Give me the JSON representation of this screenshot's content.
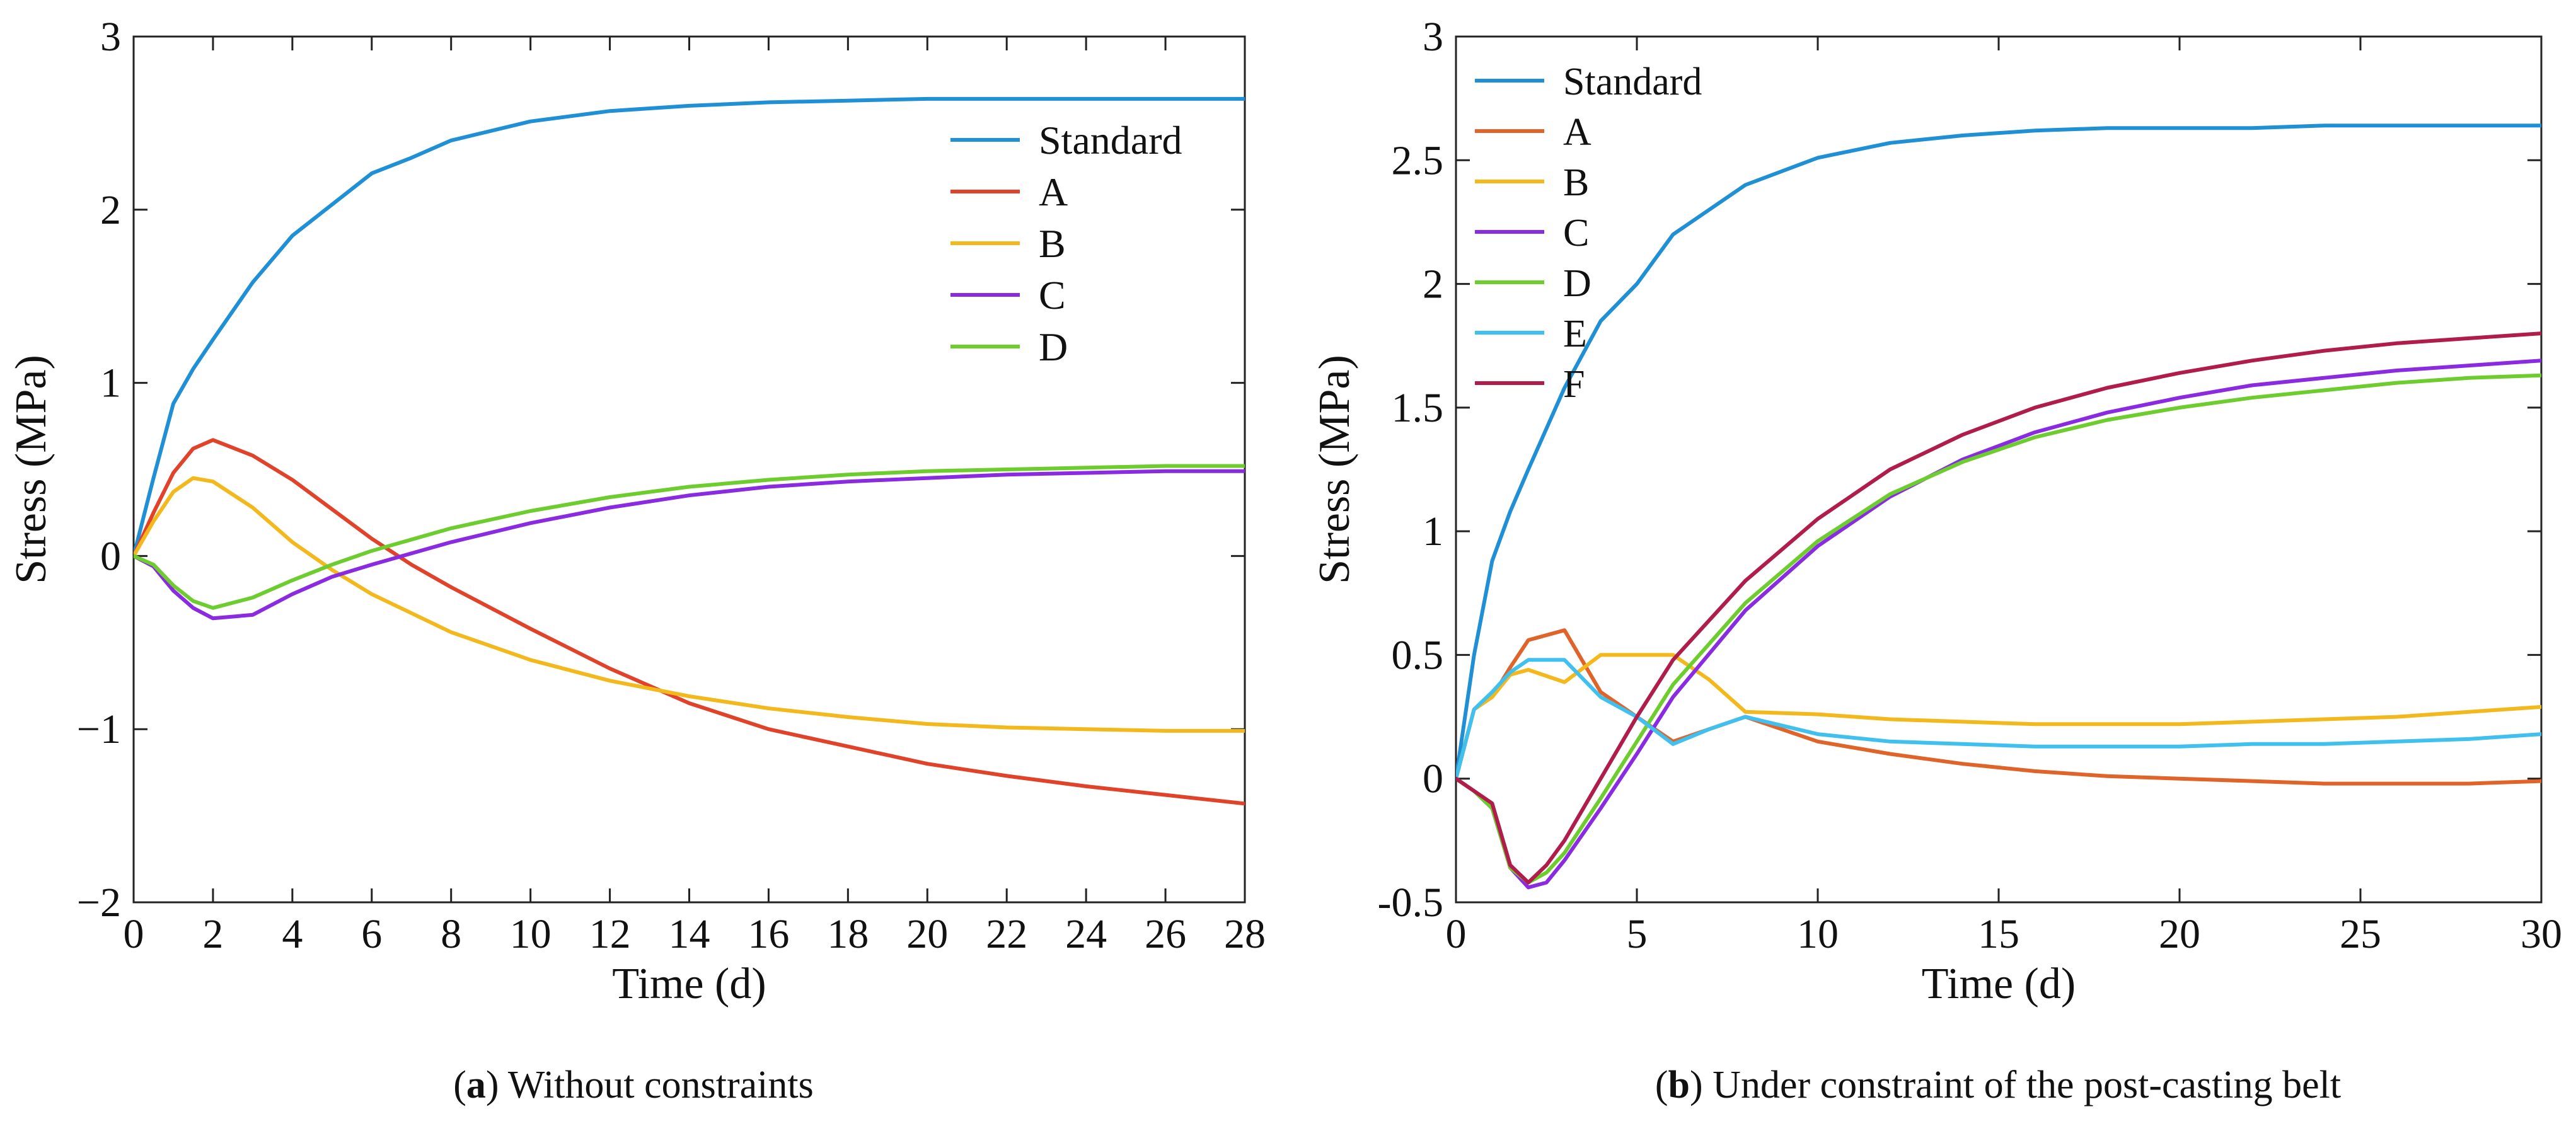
{
  "chart_data": [
    {
      "type": "line",
      "caption": {
        "letter": "a",
        "text": ") Without constraints"
      },
      "xlabel": "Time (d)",
      "ylabel": "Stress (MPa)",
      "xlim": [
        0,
        28
      ],
      "ylim": [
        -2,
        3
      ],
      "xticks": [
        0,
        2,
        4,
        6,
        8,
        10,
        12,
        14,
        16,
        18,
        20,
        22,
        24,
        26,
        28
      ],
      "yticks": [
        -2,
        -1,
        0,
        1,
        2,
        3
      ],
      "ytick_labels": [
        "−2",
        "−1",
        "0",
        "1",
        "2",
        "3"
      ],
      "grid": false,
      "legend_position": "top-right",
      "series": [
        {
          "name": "Standard",
          "color": "#1f8fd6",
          "x": [
            0,
            0.5,
            1,
            1.5,
            2,
            3,
            4,
            5,
            6,
            7,
            8,
            10,
            12,
            14,
            16,
            18,
            20,
            22,
            24,
            26,
            28
          ],
          "y": [
            0,
            0.45,
            0.88,
            1.08,
            1.25,
            1.58,
            1.85,
            2.03,
            2.21,
            2.3,
            2.4,
            2.51,
            2.57,
            2.6,
            2.62,
            2.63,
            2.64,
            2.64,
            2.64,
            2.64,
            2.64
          ]
        },
        {
          "name": "A",
          "color": "#e0432a",
          "x": [
            0,
            0.5,
            1,
            1.5,
            2,
            3,
            4,
            5,
            6,
            7,
            8,
            10,
            12,
            14,
            16,
            18,
            20,
            22,
            24,
            26,
            28
          ],
          "y": [
            0,
            0.25,
            0.48,
            0.62,
            0.67,
            0.58,
            0.44,
            0.27,
            0.1,
            -0.05,
            -0.18,
            -0.42,
            -0.65,
            -0.85,
            -1.0,
            -1.1,
            -1.2,
            -1.27,
            -1.33,
            -1.38,
            -1.43
          ]
        },
        {
          "name": "B",
          "color": "#f2b81c",
          "x": [
            0,
            0.5,
            1,
            1.5,
            2,
            3,
            4,
            5,
            6,
            8,
            10,
            12,
            14,
            16,
            18,
            20,
            22,
            24,
            26,
            28
          ],
          "y": [
            0,
            0.2,
            0.37,
            0.45,
            0.43,
            0.28,
            0.08,
            -0.08,
            -0.22,
            -0.44,
            -0.6,
            -0.72,
            -0.81,
            -0.88,
            -0.93,
            -0.97,
            -0.99,
            -1.0,
            -1.01,
            -1.01
          ]
        },
        {
          "name": "C",
          "color": "#8a2be2",
          "x": [
            0,
            0.5,
            1,
            1.5,
            2,
            3,
            4,
            5,
            6,
            8,
            10,
            12,
            14,
            16,
            18,
            20,
            22,
            24,
            26,
            28
          ],
          "y": [
            0,
            -0.06,
            -0.2,
            -0.3,
            -0.36,
            -0.34,
            -0.22,
            -0.12,
            -0.05,
            0.08,
            0.19,
            0.28,
            0.35,
            0.4,
            0.43,
            0.45,
            0.47,
            0.48,
            0.49,
            0.49
          ]
        },
        {
          "name": "D",
          "color": "#6dcc2e",
          "x": [
            0,
            0.5,
            1,
            1.5,
            2,
            3,
            4,
            5,
            6,
            8,
            10,
            12,
            14,
            16,
            18,
            20,
            22,
            24,
            26,
            28
          ],
          "y": [
            0,
            -0.05,
            -0.17,
            -0.26,
            -0.3,
            -0.24,
            -0.14,
            -0.05,
            0.03,
            0.16,
            0.26,
            0.34,
            0.4,
            0.44,
            0.47,
            0.49,
            0.5,
            0.51,
            0.52,
            0.52
          ]
        }
      ]
    },
    {
      "type": "line",
      "caption": {
        "letter": "b",
        "text": ") Under constraint of the post-casting belt"
      },
      "xlabel": "Time (d)",
      "ylabel": "Stress (MPa)",
      "xlim": [
        0,
        30
      ],
      "ylim": [
        -0.5,
        3
      ],
      "xticks": [
        0,
        5,
        10,
        15,
        20,
        25,
        30
      ],
      "yticks": [
        -0.5,
        0,
        0.5,
        1,
        1.5,
        2,
        2.5,
        3
      ],
      "ytick_labels": [
        "-0.5",
        "0",
        "0.5",
        "1",
        "1.5",
        "2",
        "2.5",
        "3"
      ],
      "grid": false,
      "legend_position": "top-left",
      "series": [
        {
          "name": "Standard",
          "color": "#1f8fd6",
          "x": [
            0,
            0.5,
            1,
            1.5,
            2,
            3,
            4,
            5,
            6,
            7,
            8,
            10,
            12,
            14,
            16,
            18,
            20,
            22,
            24,
            26,
            28,
            30
          ],
          "y": [
            0,
            0.5,
            0.88,
            1.08,
            1.25,
            1.58,
            1.85,
            2.0,
            2.2,
            2.3,
            2.4,
            2.51,
            2.57,
            2.6,
            2.62,
            2.63,
            2.63,
            2.63,
            2.64,
            2.64,
            2.64,
            2.64
          ]
        },
        {
          "name": "A",
          "color": "#e0632a",
          "x": [
            0,
            0.5,
            1,
            1.5,
            2,
            3,
            4,
            5,
            6,
            7,
            8,
            10,
            12,
            14,
            16,
            18,
            20,
            22,
            24,
            26,
            28,
            30
          ],
          "y": [
            0,
            0.28,
            0.33,
            0.45,
            0.56,
            0.6,
            0.35,
            0.25,
            0.15,
            0.2,
            0.25,
            0.15,
            0.1,
            0.06,
            0.03,
            0.01,
            0.0,
            -0.01,
            -0.02,
            -0.02,
            -0.02,
            -0.01
          ]
        },
        {
          "name": "B",
          "color": "#f2b81c",
          "x": [
            0,
            0.5,
            1,
            1.5,
            2,
            3,
            4,
            5,
            6,
            7,
            8,
            10,
            12,
            14,
            16,
            18,
            20,
            22,
            24,
            26,
            28,
            30
          ],
          "y": [
            0,
            0.28,
            0.33,
            0.42,
            0.44,
            0.39,
            0.5,
            0.5,
            0.5,
            0.4,
            0.27,
            0.26,
            0.24,
            0.23,
            0.22,
            0.22,
            0.22,
            0.23,
            0.24,
            0.25,
            0.27,
            0.29
          ]
        },
        {
          "name": "C",
          "color": "#8a2be2",
          "x": [
            0,
            0.5,
            1,
            1.5,
            2,
            2.5,
            3,
            4,
            5,
            6,
            8,
            10,
            12,
            14,
            16,
            18,
            20,
            22,
            24,
            26,
            28,
            30
          ],
          "y": [
            0,
            -0.05,
            -0.12,
            -0.36,
            -0.44,
            -0.42,
            -0.33,
            -0.12,
            0.1,
            0.33,
            0.68,
            0.94,
            1.14,
            1.29,
            1.4,
            1.48,
            1.54,
            1.59,
            1.62,
            1.65,
            1.67,
            1.69
          ]
        },
        {
          "name": "D",
          "color": "#6dcc2e",
          "x": [
            0,
            0.5,
            1,
            1.5,
            2,
            2.5,
            3,
            4,
            5,
            6,
            8,
            10,
            12,
            14,
            16,
            18,
            20,
            22,
            24,
            26,
            28,
            30
          ],
          "y": [
            0,
            -0.05,
            -0.12,
            -0.36,
            -0.42,
            -0.38,
            -0.3,
            -0.08,
            0.15,
            0.38,
            0.71,
            0.96,
            1.15,
            1.28,
            1.38,
            1.45,
            1.5,
            1.54,
            1.57,
            1.6,
            1.62,
            1.63
          ]
        },
        {
          "name": "E",
          "color": "#3fc0ee",
          "x": [
            0,
            0.5,
            1,
            1.5,
            2,
            3,
            4,
            5,
            6,
            7,
            8,
            10,
            12,
            14,
            16,
            18,
            20,
            22,
            24,
            26,
            28,
            30
          ],
          "y": [
            0,
            0.28,
            0.35,
            0.43,
            0.48,
            0.48,
            0.33,
            0.25,
            0.14,
            0.2,
            0.25,
            0.18,
            0.15,
            0.14,
            0.13,
            0.13,
            0.13,
            0.14,
            0.14,
            0.15,
            0.16,
            0.18
          ]
        },
        {
          "name": "F",
          "color": "#b01d4a",
          "x": [
            0,
            0.5,
            1,
            1.5,
            2,
            2.5,
            3,
            4,
            5,
            6,
            8,
            10,
            12,
            14,
            16,
            18,
            20,
            22,
            24,
            26,
            28,
            30
          ],
          "y": [
            0,
            -0.05,
            -0.1,
            -0.35,
            -0.42,
            -0.35,
            -0.25,
            0.0,
            0.25,
            0.48,
            0.8,
            1.05,
            1.25,
            1.39,
            1.5,
            1.58,
            1.64,
            1.69,
            1.73,
            1.76,
            1.78,
            1.8
          ]
        }
      ]
    }
  ]
}
